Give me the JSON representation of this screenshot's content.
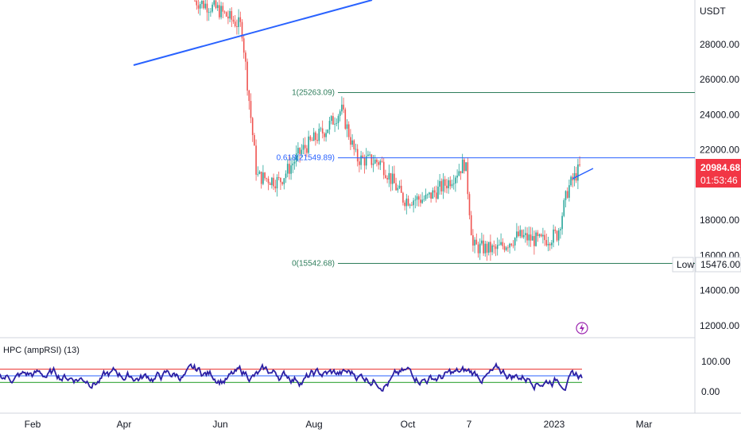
{
  "price_axis": {
    "unit": "USDT",
    "ticks": [
      "28000.00",
      "26000.00",
      "24000.00",
      "22000.00",
      "18000.00",
      "16000.00",
      "14000.00",
      "12000.00"
    ]
  },
  "time_axis": {
    "ticks": [
      "Feb",
      "Apr",
      "Jun",
      "Aug",
      "Oct",
      "7",
      "2023",
      "Mar"
    ]
  },
  "last_price": {
    "value": "20984.68",
    "countdown": "01:53:46",
    "color": "#f23645"
  },
  "low_marker": {
    "label": "Low",
    "value": "15476.00"
  },
  "fib_levels": [
    {
      "label": "1(25263.09)",
      "price": 25263.09,
      "color": "#2e7d5b"
    },
    {
      "label": "0.618(21549.89)",
      "price": 21549.89,
      "color": "#2962ff"
    },
    {
      "label": "0(15542.68)",
      "price": 15542.68,
      "color": "#2e7d5b"
    }
  ],
  "indicator": {
    "title": "HPC (ampRSI) (13)",
    "ticks": [
      "100.00",
      "0.00"
    ],
    "line_color": "#2b1fa3"
  },
  "colors": {
    "up": "#26a69a",
    "down": "#ef5350",
    "trendline": "#2962ff",
    "grid": "#f0f3fa"
  },
  "icons": {
    "alert": "lightning-icon"
  },
  "chart_data": {
    "type": "candlestick",
    "series": [
      {
        "name": "",
        "x": [
          "2022-05-10",
          "2022-05-25",
          "2022-06-10",
          "2022-06-20",
          "2022-07-05",
          "2022-07-20",
          "2022-08-05",
          "2022-08-15",
          "2022-08-25",
          "2022-09-10",
          "2022-09-25",
          "2022-10-10",
          "2022-10-25",
          "2022-11-05",
          "2022-11-10",
          "2022-11-25",
          "2022-12-10",
          "2022-12-25",
          "2023-01-05",
          "2023-01-12",
          "2023-01-20"
        ],
        "values": [
          30500,
          30000,
          29000,
          20500,
          20200,
          22000,
          23200,
          24300,
          21500,
          21300,
          19200,
          19200,
          20200,
          21300,
          16500,
          16300,
          17100,
          16800,
          17200,
          19800,
          21000
        ]
      }
    ],
    "ylim": [
      11000,
      31000
    ],
    "xlim": [
      "2022-01-01",
      "2023-04-01"
    ],
    "yscale": "linear",
    "grid": false
  }
}
